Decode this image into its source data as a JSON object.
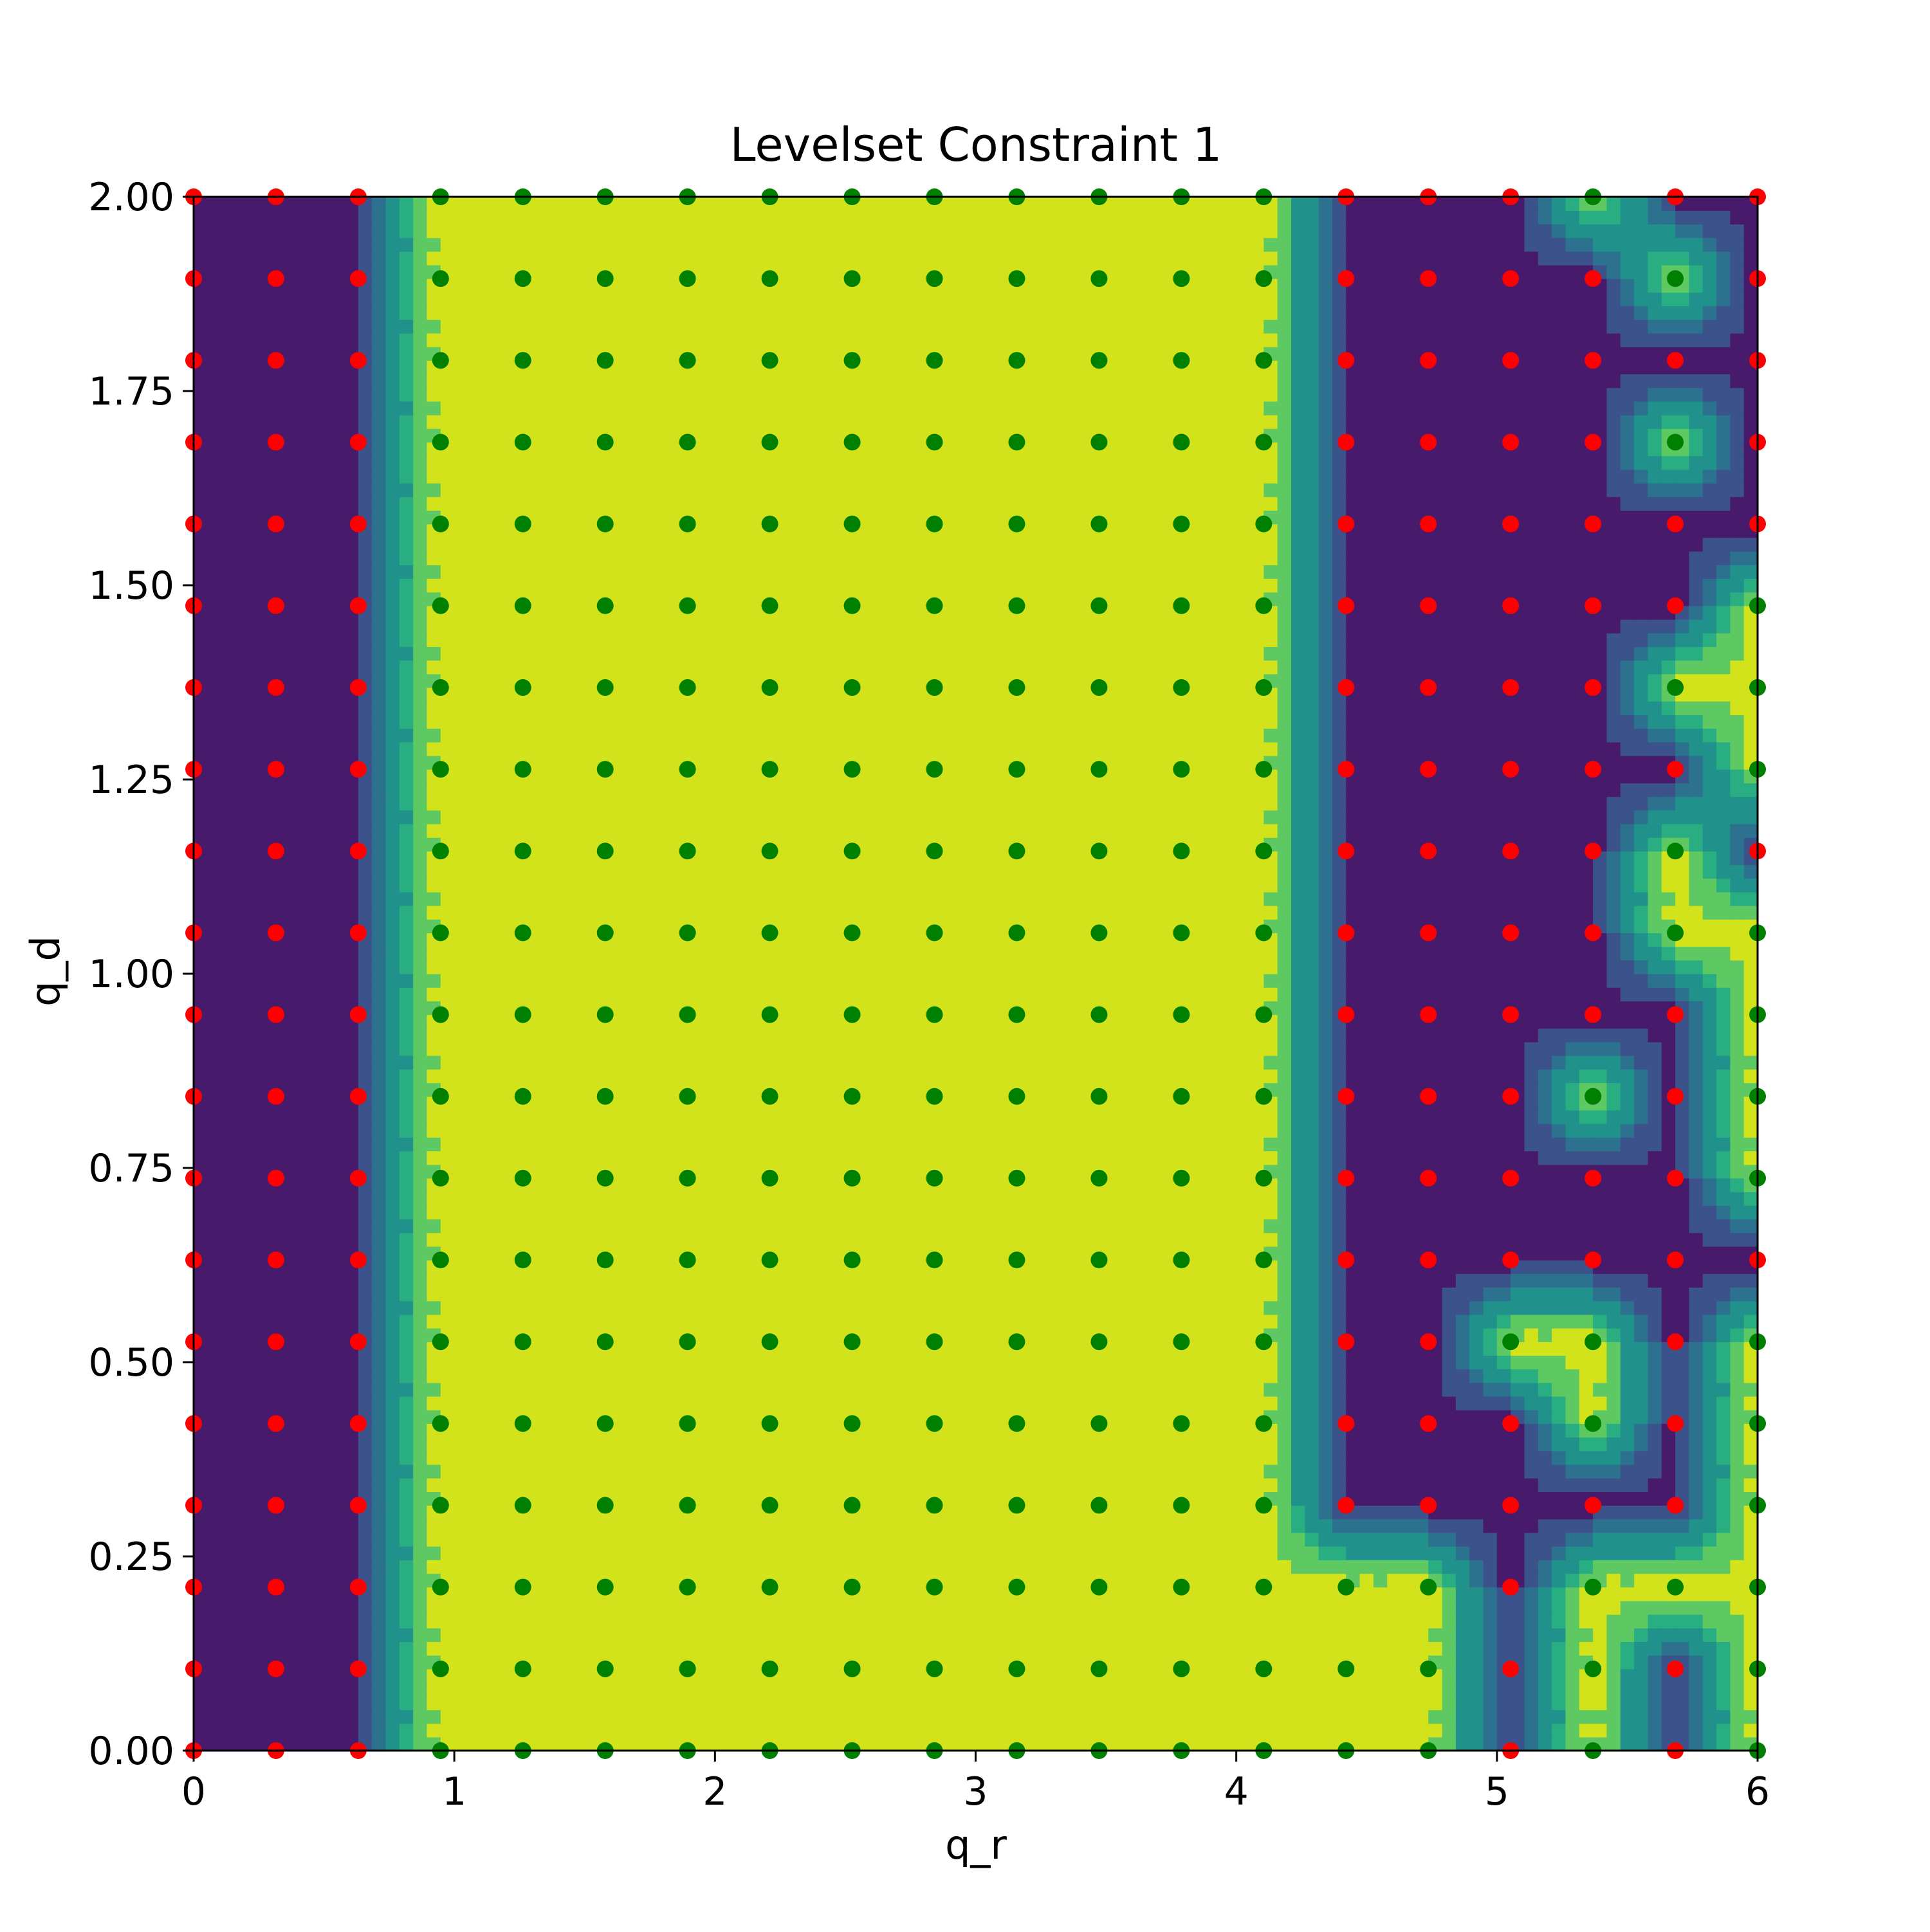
{
  "chart_data": {
    "type": "heatmap",
    "title": "Levelset Constraint 1",
    "xlabel": "q_r",
    "ylabel": "q_d",
    "xlim": [
      0,
      6
    ],
    "ylim": [
      0,
      2
    ],
    "xticks": [
      "0",
      "1",
      "2",
      "3",
      "4",
      "5",
      "6"
    ],
    "yticks": [
      "0.00",
      "0.25",
      "0.50",
      "0.75",
      "1.00",
      "1.25",
      "1.50",
      "1.75",
      "2.00"
    ],
    "grid": false,
    "legend": "none",
    "grid_x": {
      "start": 0,
      "step": 0.3158,
      "count": 20
    },
    "grid_y": {
      "start": 0,
      "step": 0.1053,
      "count": 20
    },
    "feasible_marker": "green",
    "infeasible_marker": "red",
    "colors": {
      "feasible_fill": "#d2e21b",
      "infeasible_fill": "#481a6c",
      "contour_levels": [
        "#481a6c",
        "#3b528b",
        "#2c728e",
        "#21918c",
        "#28ae80",
        "#5ec962",
        "#d2e21b"
      ],
      "feasible_marker": "#008000",
      "infeasible_marker": "#ff0000"
    },
    "feasibility_rows_bottom_to_top": [
      "00011111111111110101",
      "00011111111111110101",
      "00011111111111110111",
      "00011111111111000001",
      "00011111111111000101",
      "00011111111111001101",
      "00011111111111000000",
      "00011111111111000001",
      "00011111111111000101",
      "00011111111111000001",
      "00011111111111000011",
      "00011111111111000010",
      "00011111111111000001",
      "00011111111111000011",
      "00011111111111000001",
      "00011111111111000000",
      "00011111111111000010",
      "00011111111111000000",
      "00011111111111000010",
      "00011111111111000100"
    ]
  }
}
